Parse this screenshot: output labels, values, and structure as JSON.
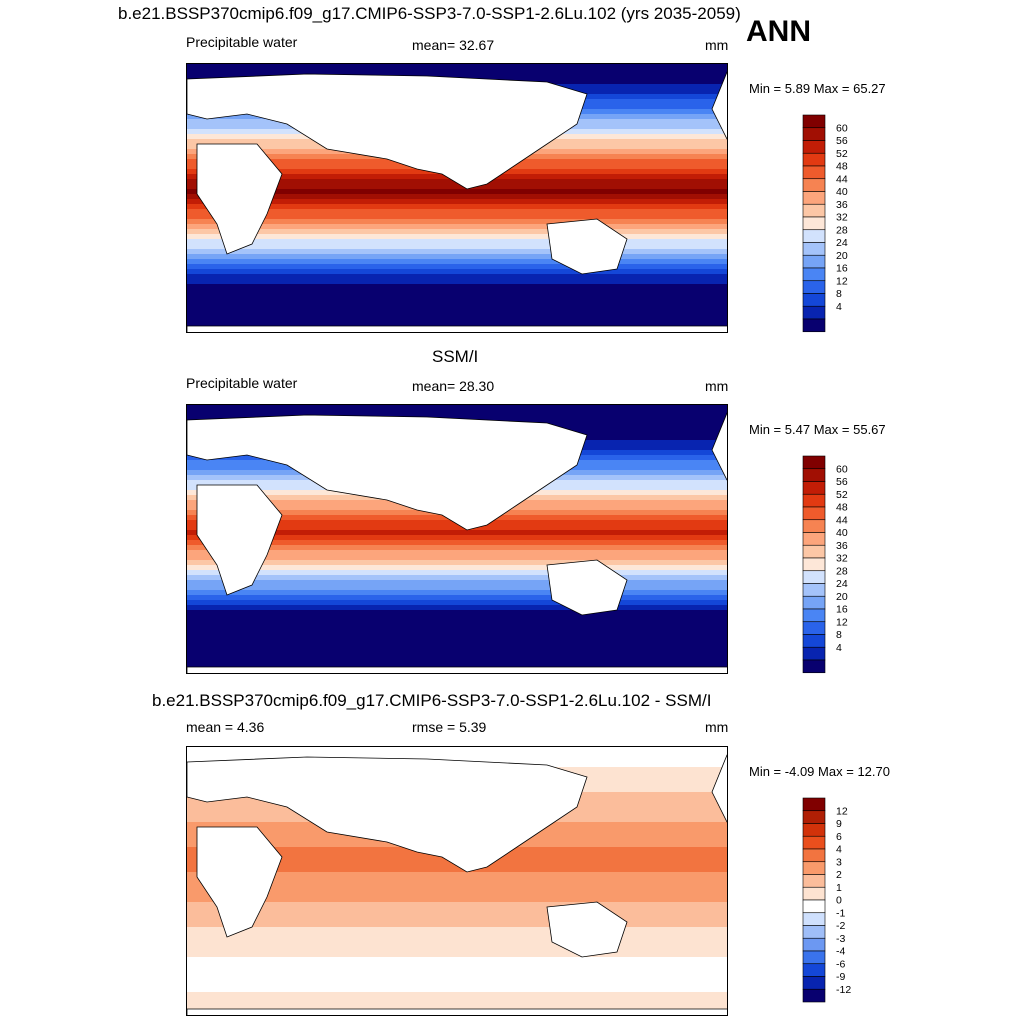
{
  "header": {
    "title": "b.e21.BSSP370cmip6.f09_g17.CMIP6-SSP3-7.0-SSP1-2.6Lu.102 (yrs 2035-2059)",
    "season": "ANN"
  },
  "colors": {
    "pw_scale": [
      "#08006f",
      "#0824b0",
      "#1447d8",
      "#2a63ea",
      "#4a85f4",
      "#76a4f6",
      "#a4c3fa",
      "#d2e2fd",
      "#fde7d8",
      "#fcc7a6",
      "#fca57c",
      "#f68352",
      "#ef5b2c",
      "#e23a12",
      "#c21d06",
      "#a10f03",
      "#800000"
    ],
    "diff_scale": [
      "#08006f",
      "#0824b0",
      "#1447d8",
      "#3a73ec",
      "#6c98f2",
      "#9fbef8",
      "#cfe0fd",
      "#ffffff",
      "#fde3d1",
      "#fbbd9b",
      "#f99a6b",
      "#f27440",
      "#ea4f1d",
      "#d2320a",
      "#b01f05",
      "#800000"
    ],
    "land": "#ffffff",
    "coast": "#000000"
  },
  "panels": [
    {
      "id": "model",
      "title": "",
      "left_label": "Precipitable water",
      "center_label": "mean=  32.67",
      "units": "mm",
      "min_label": "Min =",
      "min_value": "5.89",
      "max_label": "Max =",
      "max_value": "65.27",
      "colorbar": "pw_scale",
      "levels": [
        "60",
        "56",
        "52",
        "48",
        "44",
        "40",
        "36",
        "32",
        "28",
        "24",
        "20",
        "16",
        "12",
        "8",
        "4"
      ]
    },
    {
      "id": "obs",
      "title": "SSM/I",
      "left_label": "Precipitable water",
      "center_label": "mean=  28.30",
      "units": "mm",
      "min_label": "Min =",
      "min_value": "5.47",
      "max_label": "Max =",
      "max_value": "55.67",
      "colorbar": "pw_scale",
      "levels": [
        "60",
        "56",
        "52",
        "48",
        "44",
        "40",
        "36",
        "32",
        "28",
        "24",
        "20",
        "16",
        "12",
        "8",
        "4"
      ]
    },
    {
      "id": "diff",
      "title": "b.e21.BSSP370cmip6.f09_g17.CMIP6-SSP3-7.0-SSP1-2.6Lu.102 - SSM/I",
      "left_label": "mean =   4.36",
      "center_label": "rmse =   5.39",
      "units": "mm",
      "min_label": "Min =",
      "min_value": "-4.09",
      "max_label": "Max =",
      "max_value": "12.70",
      "colorbar": "diff_scale",
      "levels": [
        "12",
        "9",
        "6",
        "4",
        "3",
        "2",
        "1",
        "0",
        "-1",
        "-2",
        "-3",
        "-4",
        "-6",
        "-9",
        "-12"
      ]
    }
  ],
  "chart_data": [
    {
      "type": "heatmap",
      "title": "b.e21.BSSP370cmip6.f09_g17.CMIP6-SSP3-7.0-SSP1-2.6Lu.102 (yrs 2035-2059)",
      "variable": "Precipitable water",
      "units": "mm",
      "mean": 32.67,
      "min": 5.89,
      "max": 65.27,
      "contour_levels": [
        4,
        8,
        12,
        16,
        20,
        24,
        28,
        32,
        36,
        40,
        44,
        48,
        52,
        56,
        60
      ]
    },
    {
      "type": "heatmap",
      "title": "SSM/I",
      "variable": "Precipitable water",
      "units": "mm",
      "mean": 28.3,
      "min": 5.47,
      "max": 55.67,
      "contour_levels": [
        4,
        8,
        12,
        16,
        20,
        24,
        28,
        32,
        36,
        40,
        44,
        48,
        52,
        56,
        60
      ]
    },
    {
      "type": "heatmap",
      "title": "b.e21.BSSP370cmip6.f09_g17.CMIP6-SSP3-7.0-SSP1-2.6Lu.102 - SSM/I",
      "units": "mm",
      "mean": 4.36,
      "rmse": 5.39,
      "min": -4.09,
      "max": 12.7,
      "contour_levels": [
        -12,
        -9,
        -6,
        -4,
        -3,
        -2,
        -1,
        0,
        1,
        2,
        3,
        4,
        6,
        9,
        12
      ]
    }
  ]
}
